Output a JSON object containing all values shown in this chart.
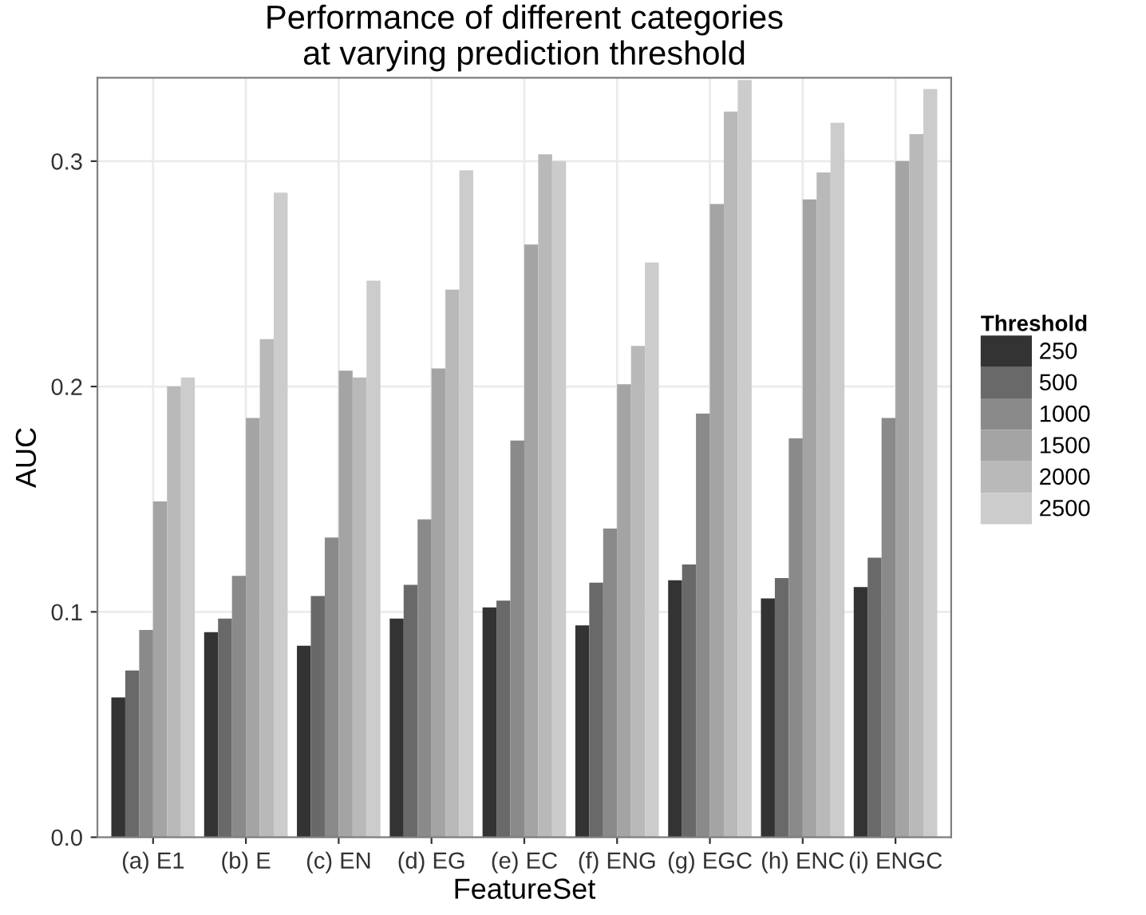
{
  "chart_data": {
    "type": "bar",
    "title": "Performance of different categories\nat varying prediction threshold",
    "xlabel": "FeatureSet",
    "ylabel": "AUC",
    "legend_title": "Threshold",
    "categories": [
      "(a) E1",
      "(b) E",
      "(c) EN",
      "(d) EG",
      "(e) EC",
      "(f) ENG",
      "(g) EGC",
      "(h) ENC",
      "(i) ENGC"
    ],
    "series": [
      {
        "name": "250",
        "color": "#333333",
        "values": [
          0.062,
          0.091,
          0.085,
          0.097,
          0.102,
          0.094,
          0.114,
          0.106,
          0.111
        ]
      },
      {
        "name": "500",
        "color": "#696969",
        "values": [
          0.074,
          0.097,
          0.107,
          0.112,
          0.105,
          0.113,
          0.121,
          0.115,
          0.124
        ]
      },
      {
        "name": "1000",
        "color": "#8a8a8a",
        "values": [
          0.092,
          0.116,
          0.133,
          0.141,
          0.176,
          0.137,
          0.188,
          0.177,
          0.186
        ]
      },
      {
        "name": "1500",
        "color": "#a4a4a4",
        "values": [
          0.149,
          0.186,
          0.207,
          0.208,
          0.263,
          0.201,
          0.281,
          0.283,
          0.3
        ]
      },
      {
        "name": "2000",
        "color": "#b9b9b9",
        "values": [
          0.2,
          0.221,
          0.204,
          0.243,
          0.303,
          0.218,
          0.322,
          0.295,
          0.312
        ]
      },
      {
        "name": "2500",
        "color": "#cccccc",
        "values": [
          0.204,
          0.286,
          0.247,
          0.296,
          0.3,
          0.255,
          0.336,
          0.317,
          0.332
        ]
      }
    ],
    "ylim": [
      0,
      0.337
    ],
    "yticks": [
      {
        "value": 0,
        "label": "0.0"
      },
      {
        "value": 0.1,
        "label": "0.1"
      },
      {
        "value": 0.2,
        "label": "0.2"
      },
      {
        "value": 0.3,
        "label": "0.3"
      }
    ],
    "grid": true,
    "legend": "right"
  }
}
